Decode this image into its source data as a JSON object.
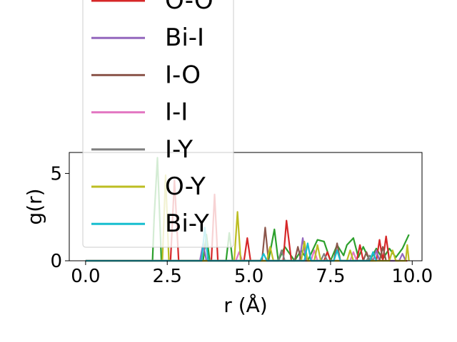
{
  "chart_data": {
    "type": "line",
    "title": "",
    "xlabel": "r (Å)",
    "ylabel": "g(r)",
    "xlim": [
      -0.5,
      10.3
    ],
    "ylim": [
      0,
      6.2
    ],
    "xticks": [
      0.0,
      2.5,
      5.0,
      7.5,
      10.0
    ],
    "xtick_labels": [
      "0.0",
      "2.5",
      "5.0",
      "7.5",
      "10.0"
    ],
    "yticks": [
      0,
      5
    ],
    "ytick_labels": [
      "0",
      "5"
    ],
    "grid": false,
    "legend_placement": "upper-left, extending above the plot area",
    "series": [
      {
        "color": "#2ca02c",
        "points": [
          [
            0,
            0
          ],
          [
            2.05,
            0
          ],
          [
            2.1,
            2.5
          ],
          [
            2.2,
            5.9
          ],
          [
            2.32,
            0
          ],
          [
            3.6,
            0
          ],
          [
            3.7,
            1.5
          ],
          [
            3.8,
            0
          ],
          [
            4.3,
            0
          ],
          [
            4.4,
            1.6
          ],
          [
            4.5,
            0
          ],
          [
            5.6,
            0
          ],
          [
            5.78,
            1.8
          ],
          [
            5.9,
            0
          ],
          [
            6.1,
            0.8
          ],
          [
            6.4,
            0
          ],
          [
            6.6,
            0.6
          ],
          [
            6.8,
            0
          ],
          [
            7.1,
            1.2
          ],
          [
            7.3,
            1.1
          ],
          [
            7.5,
            0
          ],
          [
            7.7,
            0.9
          ],
          [
            7.9,
            0.3
          ],
          [
            8.0,
            0.9
          ],
          [
            8.2,
            1.3
          ],
          [
            8.35,
            0.2
          ],
          [
            8.5,
            0.8
          ],
          [
            8.7,
            0
          ],
          [
            8.9,
            0.7
          ],
          [
            9.1,
            0.1
          ],
          [
            9.3,
            0.7
          ],
          [
            9.5,
            0.2
          ],
          [
            9.7,
            0.7
          ],
          [
            9.9,
            1.5
          ]
        ]
      },
      {
        "color": "#d62728",
        "points": [
          [
            0,
            0
          ],
          [
            2.6,
            0
          ],
          [
            2.72,
            4.6
          ],
          [
            2.85,
            0
          ],
          [
            3.85,
            0
          ],
          [
            3.95,
            3.8
          ],
          [
            4.05,
            0
          ],
          [
            4.85,
            0
          ],
          [
            4.95,
            1.3
          ],
          [
            5.05,
            0
          ],
          [
            6.05,
            0
          ],
          [
            6.15,
            2.3
          ],
          [
            6.3,
            0
          ],
          [
            7.3,
            0
          ],
          [
            7.4,
            0.5
          ],
          [
            7.5,
            0
          ],
          [
            8.3,
            0
          ],
          [
            8.4,
            0.9
          ],
          [
            8.5,
            0
          ],
          [
            8.9,
            0
          ],
          [
            9.0,
            1.2
          ],
          [
            9.1,
            0
          ],
          [
            9.2,
            1.4
          ],
          [
            9.3,
            0
          ],
          [
            9.85,
            0
          ]
        ]
      },
      {
        "color": "#9467bd",
        "points": [
          [
            0,
            0
          ],
          [
            3.5,
            0
          ],
          [
            3.6,
            1.0
          ],
          [
            3.7,
            0
          ],
          [
            6.55,
            0
          ],
          [
            6.65,
            1.3
          ],
          [
            6.75,
            0
          ],
          [
            8.8,
            0
          ],
          [
            8.9,
            0.6
          ],
          [
            9.0,
            0
          ],
          [
            9.6,
            0
          ],
          [
            9.7,
            0.4
          ],
          [
            9.8,
            0
          ]
        ]
      },
      {
        "color": "#8c564b",
        "points": [
          [
            0,
            0
          ],
          [
            5.4,
            0
          ],
          [
            5.5,
            1.9
          ],
          [
            5.6,
            0
          ],
          [
            6.4,
            0
          ],
          [
            6.5,
            0.8
          ],
          [
            6.6,
            0
          ],
          [
            7.6,
            0
          ],
          [
            7.7,
            1.0
          ],
          [
            7.8,
            0
          ],
          [
            8.5,
            0
          ],
          [
            8.6,
            0.5
          ],
          [
            8.7,
            0
          ],
          [
            9.0,
            0
          ],
          [
            9.1,
            0.8
          ],
          [
            9.2,
            0
          ]
        ]
      },
      {
        "color": "#e377c2",
        "points": [
          [
            0,
            0
          ],
          [
            4.6,
            0
          ],
          [
            4.7,
            0.5
          ],
          [
            4.8,
            0
          ],
          [
            6.9,
            0
          ],
          [
            7.0,
            0.6
          ],
          [
            7.1,
            0
          ],
          [
            8.1,
            0
          ],
          [
            8.2,
            0.5
          ],
          [
            8.3,
            0
          ]
        ]
      },
      {
        "color": "#7f7f7f",
        "points": [
          [
            0,
            0
          ],
          [
            5.9,
            0
          ],
          [
            6.0,
            0.6
          ],
          [
            6.1,
            0
          ],
          [
            7.2,
            0
          ],
          [
            7.3,
            0.4
          ],
          [
            7.4,
            0
          ],
          [
            8.6,
            0
          ],
          [
            8.7,
            0.3
          ],
          [
            8.8,
            0
          ]
        ]
      },
      {
        "color": "#bcbd22",
        "points": [
          [
            0,
            0
          ],
          [
            2.35,
            0
          ],
          [
            2.45,
            4.9
          ],
          [
            2.55,
            0
          ],
          [
            4.55,
            0
          ],
          [
            4.65,
            2.8
          ],
          [
            4.75,
            0
          ],
          [
            5.55,
            0
          ],
          [
            5.65,
            0.8
          ],
          [
            5.75,
            0
          ],
          [
            6.6,
            0
          ],
          [
            6.7,
            1.1
          ],
          [
            6.8,
            0
          ],
          [
            7.0,
            0
          ],
          [
            7.1,
            0.9
          ],
          [
            7.2,
            0
          ],
          [
            8.0,
            0
          ],
          [
            8.1,
            0.6
          ],
          [
            8.2,
            0
          ],
          [
            9.3,
            0
          ],
          [
            9.4,
            0.6
          ],
          [
            9.5,
            0
          ],
          [
            9.8,
            0
          ],
          [
            9.85,
            0.9
          ],
          [
            9.9,
            0
          ]
        ]
      },
      {
        "color": "#17becf",
        "points": [
          [
            0,
            0
          ],
          [
            3.55,
            0
          ],
          [
            3.65,
            1.9
          ],
          [
            3.75,
            0
          ],
          [
            5.35,
            0
          ],
          [
            5.45,
            0.4
          ],
          [
            5.55,
            0
          ],
          [
            6.7,
            0
          ],
          [
            6.8,
            1.0
          ],
          [
            6.9,
            0
          ],
          [
            7.6,
            0
          ],
          [
            7.7,
            0.6
          ],
          [
            7.8,
            0
          ],
          [
            8.7,
            0
          ],
          [
            8.8,
            0.5
          ],
          [
            8.9,
            0
          ]
        ]
      }
    ],
    "legend": [
      {
        "label": "O-O",
        "color": "#d62728"
      },
      {
        "label": "Bi-I",
        "color": "#9467bd"
      },
      {
        "label": "I-O",
        "color": "#8c564b"
      },
      {
        "label": "I-I",
        "color": "#e377c2"
      },
      {
        "label": "I-Y",
        "color": "#7f7f7f"
      },
      {
        "label": "O-Y",
        "color": "#bcbd22"
      },
      {
        "label": "Bi-Y",
        "color": "#17becf"
      }
    ]
  }
}
